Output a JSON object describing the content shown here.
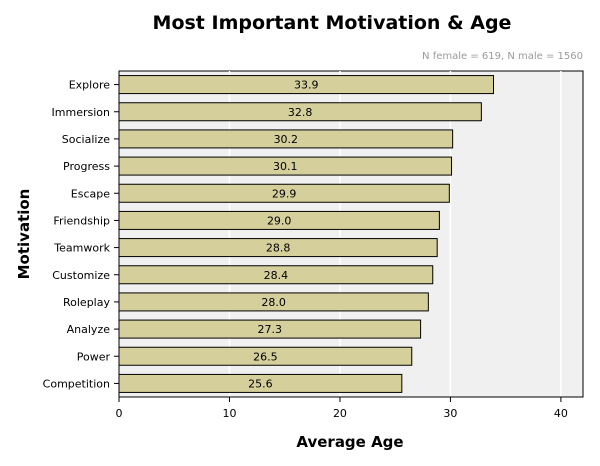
{
  "colors": {
    "bar_fill": "#d5cf9c",
    "bar_stroke": "#000000",
    "plot_bg": "#f0f0f0",
    "grid": "#ffffff",
    "subtitle": "#9a9a9a"
  },
  "chart_data": {
    "type": "bar",
    "orientation": "horizontal",
    "title": "Most Important Motivation & Age",
    "subtitle": "N female = 619, N male = 1560",
    "xlabel": "Average Age",
    "ylabel": "Motivation",
    "xlim": [
      0,
      42
    ],
    "xticks": [
      0,
      10,
      20,
      30,
      40
    ],
    "grid": true,
    "categories": [
      "Explore",
      "Immersion",
      "Socialize",
      "Progress",
      "Escape",
      "Friendship",
      "Teamwork",
      "Customize",
      "Roleplay",
      "Analyze",
      "Power",
      "Competition"
    ],
    "values": [
      33.9,
      32.8,
      30.2,
      30.1,
      29.9,
      29.0,
      28.8,
      28.4,
      28.0,
      27.3,
      26.5,
      25.6
    ],
    "data_labels": [
      "33.9",
      "32.8",
      "30.2",
      "30.1",
      "29.9",
      "29.0",
      "28.8",
      "28.4",
      "28.0",
      "27.3",
      "26.5",
      "25.6"
    ]
  }
}
